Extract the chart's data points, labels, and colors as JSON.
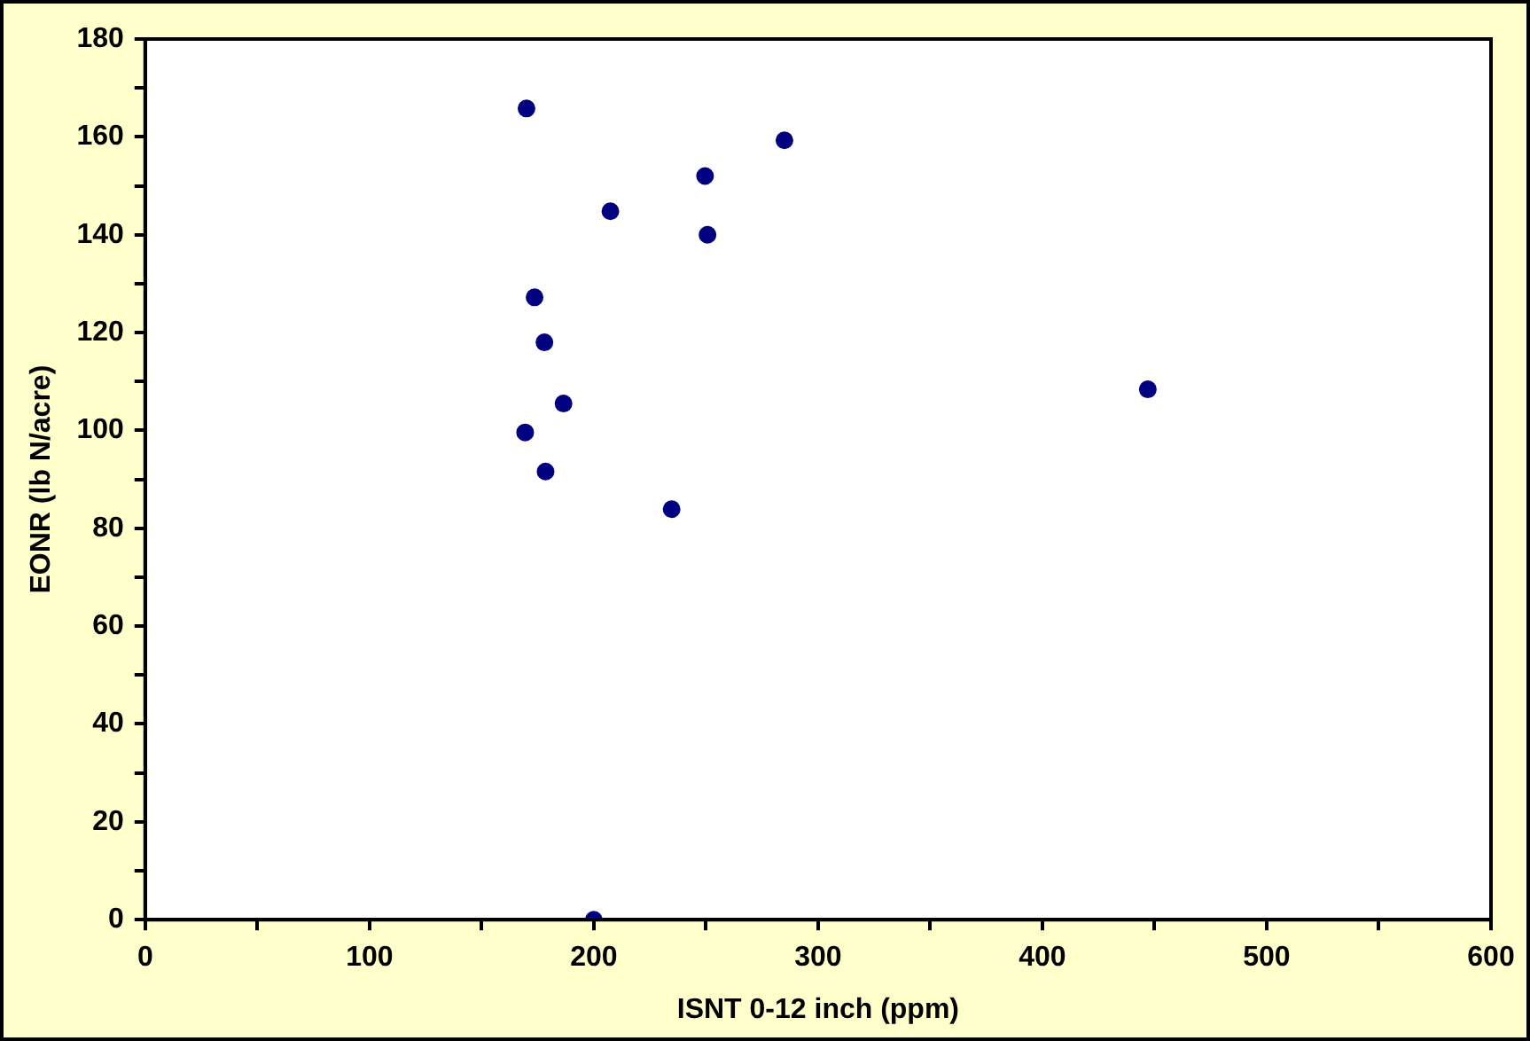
{
  "chart_data": {
    "type": "scatter",
    "xlabel": "ISNT 0-12 inch (ppm)",
    "ylabel": "EONR (lb N/acre)",
    "x": [
      170,
      285,
      249.6,
      207.4,
      250.7,
      173.6,
      178,
      186.5,
      169.4,
      178.5,
      234.7,
      447,
      200
    ],
    "series": [
      {
        "color": "#000080",
        "values": [
          165.8,
          159.3,
          152,
          144.8,
          140,
          127.2,
          118,
          105.5,
          99.6,
          91.6,
          83.9,
          108.4,
          0
        ]
      }
    ],
    "xlim": [
      0,
      600
    ],
    "ylim": [
      0,
      180
    ],
    "xticks": [
      0,
      {
        "value": 50,
        "label": null
      },
      100,
      {
        "value": 150,
        "label": null
      },
      200,
      {
        "value": 250,
        "label": null
      },
      300,
      {
        "value": 350,
        "label": null
      },
      400,
      {
        "value": 450,
        "label": null
      },
      500,
      {
        "value": 550,
        "label": null
      },
      600
    ],
    "yticks": [
      0,
      {
        "value": 10,
        "label": null
      },
      20,
      {
        "value": 30,
        "label": null
      },
      40,
      {
        "value": 50,
        "label": null
      },
      60,
      {
        "value": 70,
        "label": null
      },
      80,
      {
        "value": 90,
        "label": null
      },
      100,
      {
        "value": 110,
        "label": null
      },
      120,
      {
        "value": 130,
        "label": null
      },
      140,
      {
        "value": 150,
        "label": null
      },
      160,
      {
        "value": 170,
        "label": null
      },
      180
    ],
    "grid": false,
    "legend": false,
    "marker": "circle"
  }
}
